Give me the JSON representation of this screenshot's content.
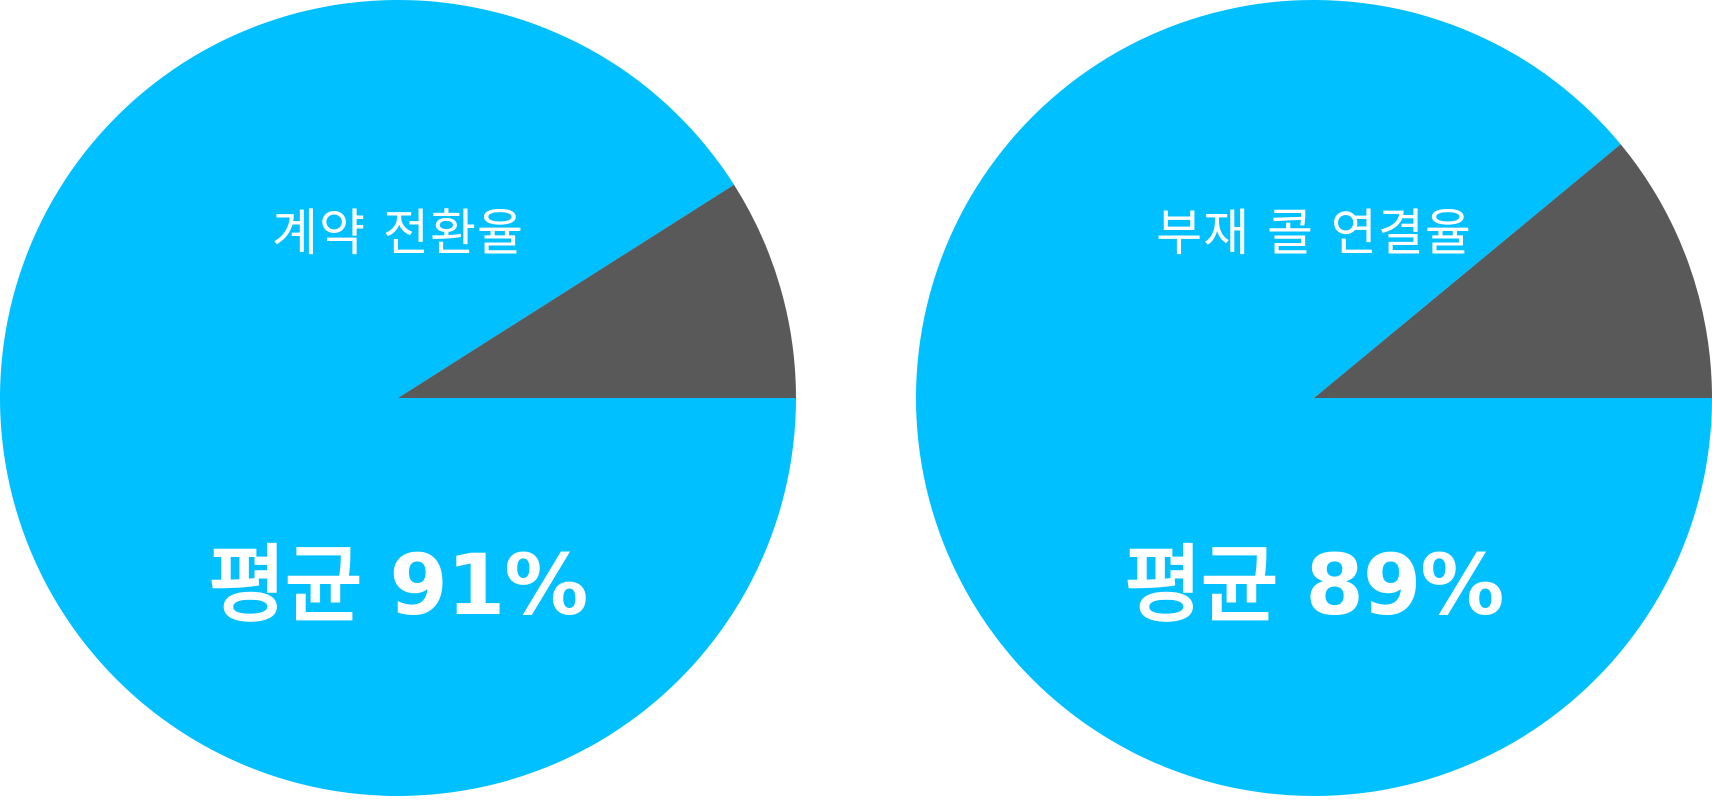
{
  "colors": {
    "main": "#00C0FF",
    "remainder": "#595959",
    "text": "#FFFFFF",
    "background": "#FFFFFF"
  },
  "chart_data": [
    {
      "type": "pie",
      "label": "계약 전환율",
      "value_text": "평균 91%",
      "slices": [
        {
          "value": 91,
          "color": "#00C0FF"
        },
        {
          "value": 9,
          "color": "#595959"
        }
      ]
    },
    {
      "type": "pie",
      "label": "부재 콜 연결율",
      "value_text": "평균 89%",
      "slices": [
        {
          "value": 89,
          "color": "#00C0FF"
        },
        {
          "value": 11,
          "color": "#595959"
        }
      ]
    }
  ]
}
